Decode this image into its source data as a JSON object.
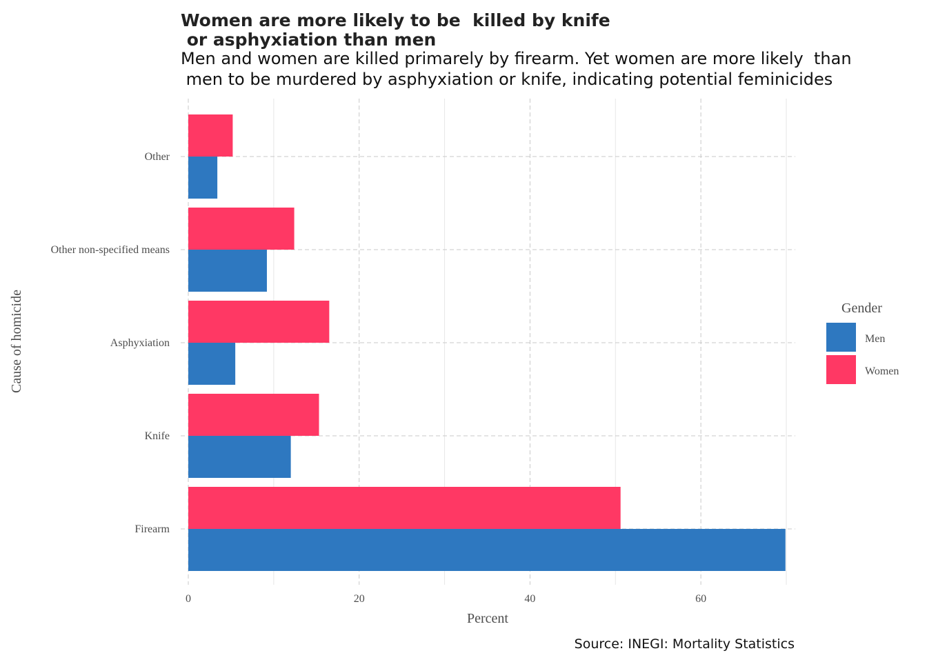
{
  "chart_data": {
    "type": "bar",
    "orientation": "horizontal",
    "title": "Women are more likely to be  killed by knife\n or asphyxiation than men",
    "subtitle": "Men and women are killed primarely by firearm. Yet women are more likely  than\n men to be murdered by asphyxiation or knife, indicating potential feminicides",
    "caption": "Source: INEGI: Mortality Statistics",
    "xlabel": "Percent",
    "ylabel": "Cause of homicide",
    "xlim": [
      0,
      70
    ],
    "xticks": [
      0,
      20,
      40,
      60
    ],
    "grid": true,
    "legend": {
      "title": "Gender",
      "position": "right"
    },
    "categories": [
      "Firearm",
      "Knife",
      "Asphyxiation",
      "Other non-specified means",
      "Other"
    ],
    "series": [
      {
        "name": "Men",
        "color": "#2E78C0",
        "values": [
          69.9,
          12.0,
          5.5,
          9.2,
          3.4
        ]
      },
      {
        "name": "Women",
        "color": "#FF3864",
        "values": [
          50.6,
          15.3,
          16.5,
          12.4,
          5.2
        ]
      }
    ]
  }
}
